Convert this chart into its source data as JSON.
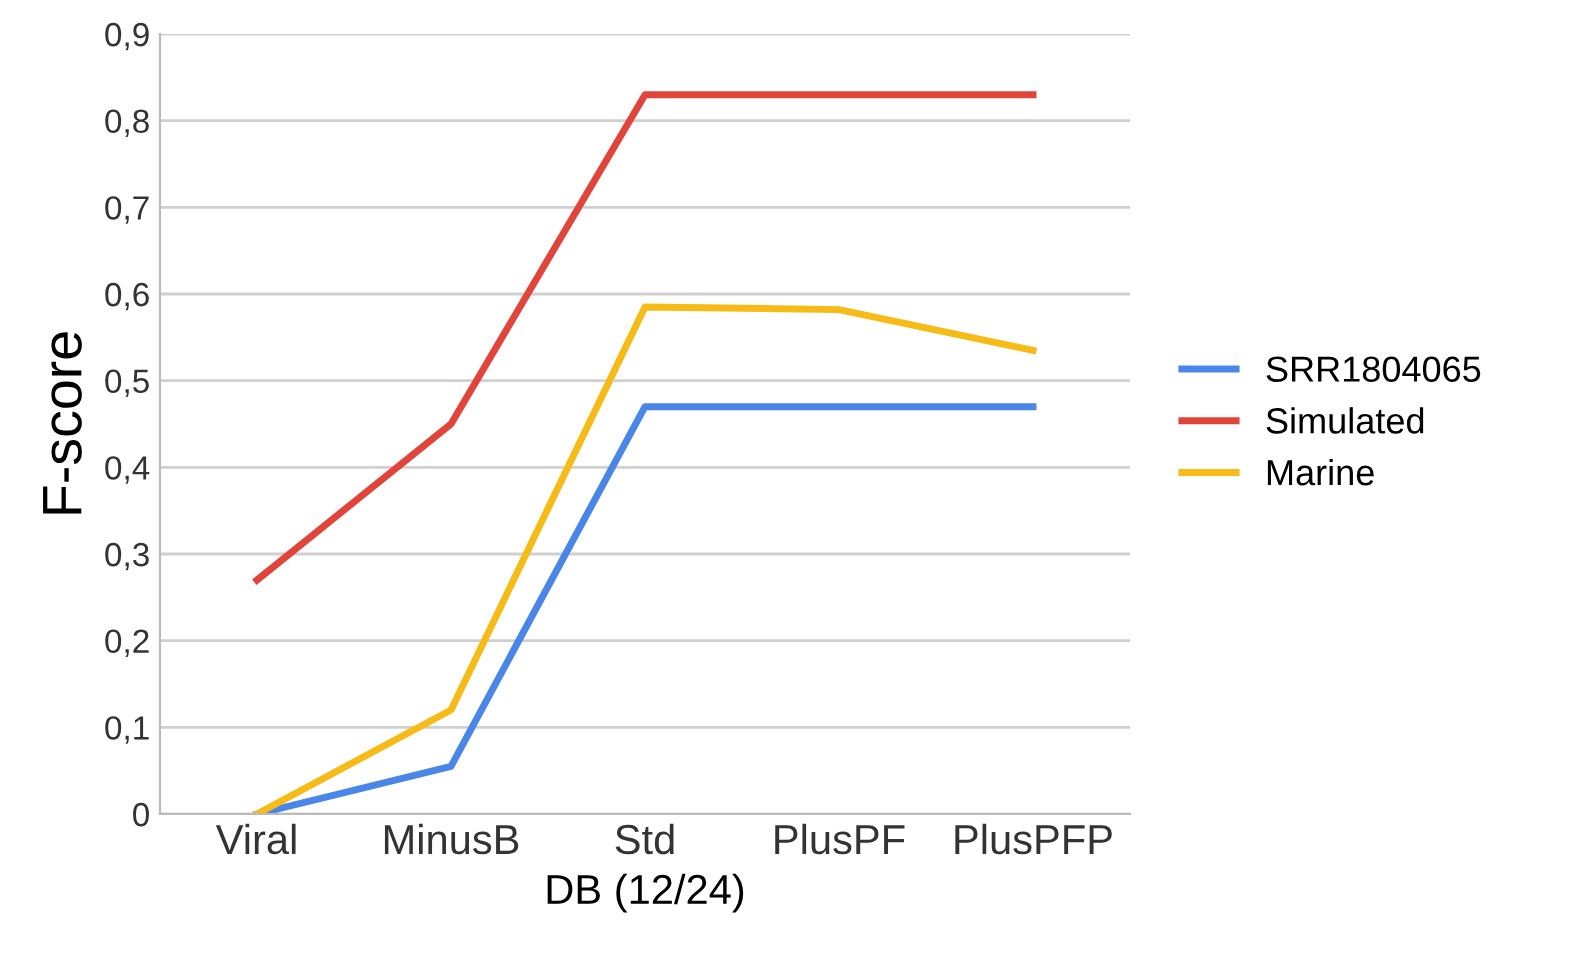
{
  "chart_data": {
    "type": "line",
    "xlabel": "DB (12/24)",
    "ylabel": "F-score",
    "categories": [
      "Viral",
      "MinusB",
      "Std",
      "PlusPF",
      "PlusPFP"
    ],
    "series": [
      {
        "name": "SRR1804065",
        "color": "#4a86e8",
        "values": [
          0,
          0.055,
          0.47,
          0.47,
          0.47
        ]
      },
      {
        "name": "Simulated",
        "color": "#e0443a",
        "values": [
          0.27,
          0.45,
          0.83,
          0.83,
          0.83
        ]
      },
      {
        "name": "Marine",
        "color": "#f6bb16",
        "values": [
          0,
          0.12,
          0.585,
          0.582,
          0.535
        ]
      }
    ],
    "ylim": [
      0,
      0.9
    ],
    "yticks": [
      {
        "value": 0,
        "label": "0"
      },
      {
        "value": 0.1,
        "label": "0,1"
      },
      {
        "value": 0.2,
        "label": "0,2"
      },
      {
        "value": 0.3,
        "label": "0,3"
      },
      {
        "value": 0.4,
        "label": "0,4"
      },
      {
        "value": 0.5,
        "label": "0,5"
      },
      {
        "value": 0.6,
        "label": "0,6"
      },
      {
        "value": 0.7,
        "label": "0,7"
      },
      {
        "value": 0.8,
        "label": "0,8"
      },
      {
        "value": 0.9,
        "label": "0,9"
      }
    ],
    "grid": "y",
    "legend": "right",
    "marker": "none",
    "line_style": "solid"
  }
}
